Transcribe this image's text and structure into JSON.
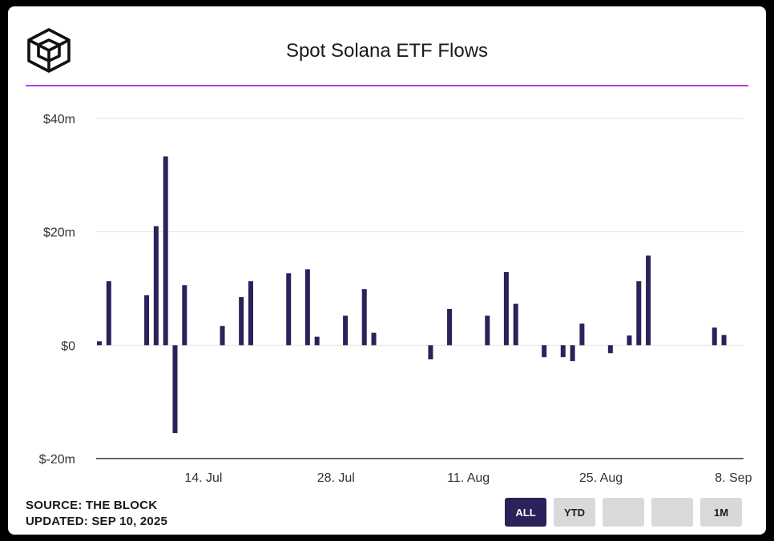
{
  "header": {
    "title": "Spot Solana ETF Flows",
    "logo_icon": "the-block-cube-logo"
  },
  "footer": {
    "source": "SOURCE: THE BLOCK",
    "updated": "UPDATED: SEP 10, 2025"
  },
  "range_buttons": [
    {
      "label": "ALL",
      "active": true
    },
    {
      "label": "YTD",
      "active": false
    },
    {
      "label": "",
      "active": false
    },
    {
      "label": "",
      "active": false
    },
    {
      "label": "1M",
      "active": false
    }
  ],
  "colors": {
    "bar": "#2b2259",
    "accent_rule": "#b43ce6",
    "active_button": "#2b2259",
    "grid": "#e6e6e6",
    "axis": "#333333"
  },
  "chart_data": {
    "type": "bar",
    "title": "Spot Solana ETF Flows",
    "xlabel": "",
    "ylabel": "",
    "ylim": [
      -20,
      40
    ],
    "yticks": [
      -20,
      0,
      20,
      40
    ],
    "ytick_labels": [
      "$-20m",
      "$0",
      "$20m",
      "$40m"
    ],
    "xticks": [
      "14. Jul",
      "28. Jul",
      "11. Aug",
      "25. Aug",
      "8. Sep"
    ],
    "xtick_dates": [
      "2025-07-14",
      "2025-07-28",
      "2025-08-11",
      "2025-08-25",
      "2025-09-08"
    ],
    "x_range": [
      "2025-07-03",
      "2025-09-10"
    ],
    "grid": true,
    "legend": "none",
    "series": [
      {
        "values": [
          [
            "2025-07-03",
            0.7
          ],
          [
            "2025-07-04",
            11.3
          ],
          [
            "2025-07-08",
            8.8
          ],
          [
            "2025-07-09",
            21.0
          ],
          [
            "2025-07-10",
            33.3
          ],
          [
            "2025-07-11",
            -15.5
          ],
          [
            "2025-07-12",
            10.6
          ],
          [
            "2025-07-16",
            3.4
          ],
          [
            "2025-07-18",
            8.5
          ],
          [
            "2025-07-19",
            11.3
          ],
          [
            "2025-07-23",
            12.7
          ],
          [
            "2025-07-25",
            13.4
          ],
          [
            "2025-07-26",
            1.5
          ],
          [
            "2025-07-29",
            5.2
          ],
          [
            "2025-07-31",
            9.9
          ],
          [
            "2025-08-01",
            2.2
          ],
          [
            "2025-08-07",
            -2.5
          ],
          [
            "2025-08-09",
            6.4
          ],
          [
            "2025-08-13",
            5.2
          ],
          [
            "2025-08-15",
            12.9
          ],
          [
            "2025-08-16",
            7.3
          ],
          [
            "2025-08-19",
            -2.1
          ],
          [
            "2025-08-21",
            -2.1
          ],
          [
            "2025-08-22",
            -2.8
          ],
          [
            "2025-08-23",
            3.8
          ],
          [
            "2025-08-26",
            -1.4
          ],
          [
            "2025-08-28",
            1.7
          ],
          [
            "2025-08-29",
            11.3
          ],
          [
            "2025-08-30",
            15.8
          ],
          [
            "2025-09-06",
            3.1
          ],
          [
            "2025-09-07",
            1.8
          ]
        ]
      }
    ]
  }
}
